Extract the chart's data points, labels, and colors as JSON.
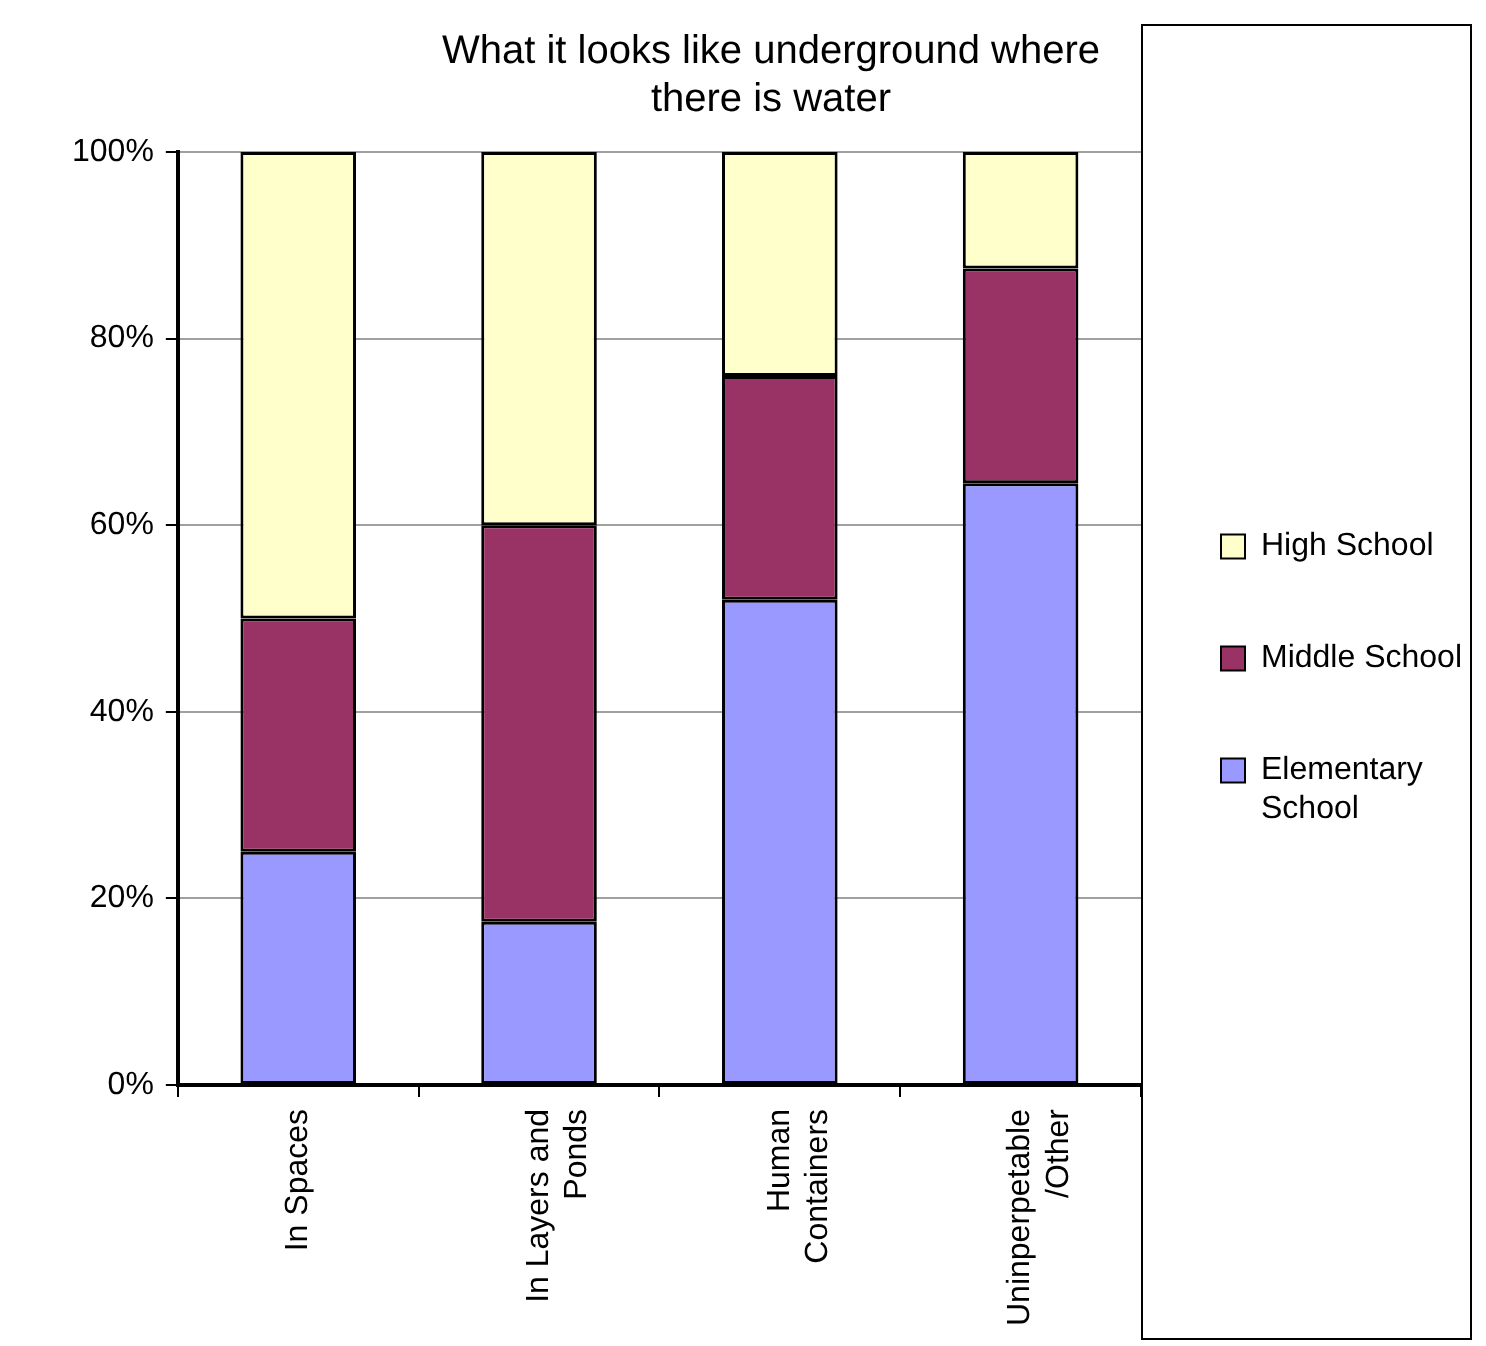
{
  "chart_data": {
    "type": "bar",
    "title": "What it looks like underground where there is water",
    "categories": [
      "In Spaces",
      "In Layers and Ponds",
      "Human Containers",
      "Uninperpetable/Other"
    ],
    "stacked": true,
    "series": [
      {
        "name": "Elementary School",
        "color": "#9999ff",
        "values": [
          25,
          17.5,
          52,
          64.5
        ]
      },
      {
        "name": "Middle School",
        "color": "#993366",
        "values": [
          25,
          42.5,
          24,
          23
        ]
      },
      {
        "name": "High School",
        "color": "#ffffcc",
        "values": [
          50,
          40,
          24,
          12.5
        ]
      }
    ],
    "ylim": [
      0,
      100
    ],
    "yticks": [
      {
        "value": 0,
        "label": "0%"
      },
      {
        "value": 20,
        "label": "20%"
      },
      {
        "value": 40,
        "label": "40%"
      },
      {
        "value": 60,
        "label": "60%"
      },
      {
        "value": 80,
        "label": "80%"
      },
      {
        "value": 100,
        "label": "100%"
      }
    ],
    "grid": "y",
    "legend": "right"
  }
}
